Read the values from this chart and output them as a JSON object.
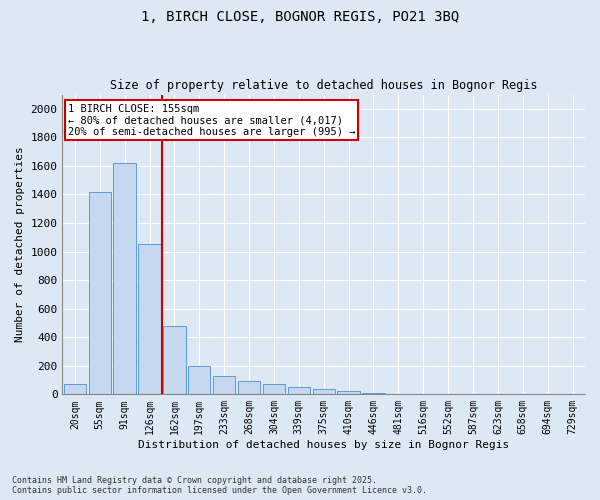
{
  "title1": "1, BIRCH CLOSE, BOGNOR REGIS, PO21 3BQ",
  "title2": "Size of property relative to detached houses in Bognor Regis",
  "xlabel": "Distribution of detached houses by size in Bognor Regis",
  "ylabel": "Number of detached properties",
  "categories": [
    "20sqm",
    "55sqm",
    "91sqm",
    "126sqm",
    "162sqm",
    "197sqm",
    "233sqm",
    "268sqm",
    "304sqm",
    "339sqm",
    "375sqm",
    "410sqm",
    "446sqm",
    "481sqm",
    "516sqm",
    "552sqm",
    "587sqm",
    "623sqm",
    "658sqm",
    "694sqm",
    "729sqm"
  ],
  "values": [
    75,
    1420,
    1620,
    1050,
    480,
    200,
    130,
    95,
    70,
    50,
    35,
    25,
    10,
    5,
    3,
    2,
    1,
    1,
    0,
    0,
    0
  ],
  "bar_color": "#c5d8f0",
  "bar_edge_color": "#5b9bd5",
  "vline_color": "#cc0000",
  "vline_x_index": 4,
  "annotation_title": "1 BIRCH CLOSE: 155sqm",
  "annotation_line1": "← 80% of detached houses are smaller (4,017)",
  "annotation_line2": "20% of semi-detached houses are larger (995) →",
  "annotation_box_edgecolor": "#cc0000",
  "footer1": "Contains HM Land Registry data © Crown copyright and database right 2025.",
  "footer2": "Contains public sector information licensed under the Open Government Licence v3.0.",
  "ylim": [
    0,
    2100
  ],
  "yticks": [
    0,
    200,
    400,
    600,
    800,
    1000,
    1200,
    1400,
    1600,
    1800,
    2000
  ],
  "bg_color": "#dde8f5",
  "plot_bg_color": "#dde8f5",
  "grid_color": "#ffffff"
}
